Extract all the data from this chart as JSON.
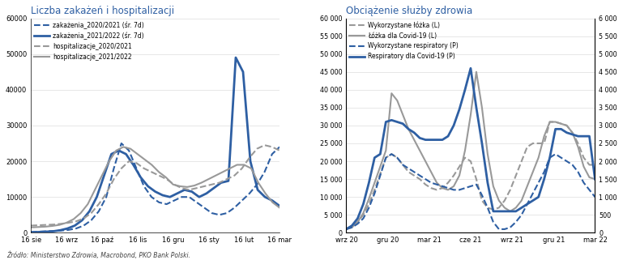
{
  "chart1": {
    "title": "Liczba zakażeń i hospitalizacji",
    "xticks": [
      "16 sie",
      "16 wrz",
      "16 paź",
      "16 lis",
      "16 gru",
      "16 sty",
      "16 lut",
      "16 mar"
    ],
    "ylim": [
      0,
      60000
    ],
    "yticks": [
      0,
      10000,
      20000,
      30000,
      40000,
      50000,
      60000
    ],
    "ytick_labels": [
      "0",
      "10000",
      "20000",
      "30000",
      "40000",
      "50000",
      "60000"
    ],
    "legend": [
      {
        "label": "zakażenia_2020/2021 (śr. 7d)",
        "color": "#2E5FA3",
        "ls": "dashed",
        "lw": 1.5
      },
      {
        "label": "zakażenia_2021/2022 (śr. 7d)",
        "color": "#2E5FA3",
        "ls": "solid",
        "lw": 2.0
      },
      {
        "label": "hospitalizacje_2020/2021",
        "color": "#999999",
        "ls": "dashed",
        "lw": 1.5
      },
      {
        "label": "hospitalizacje_2021/2022",
        "color": "#999999",
        "ls": "solid",
        "lw": 1.5
      }
    ],
    "series": {
      "zakaz_2020_2021": [
        200,
        300,
        400,
        500,
        600,
        800,
        1200,
        2000,
        3500,
        6000,
        10000,
        18000,
        25000,
        23000,
        18000,
        13000,
        10000,
        8500,
        8000,
        9000,
        10000,
        10000,
        8500,
        7000,
        5500,
        5000,
        5500,
        7000,
        9000,
        11000,
        13500,
        17000,
        22000,
        24000
      ],
      "zakaz_2021_2022": [
        100,
        200,
        300,
        400,
        700,
        1200,
        2000,
        3500,
        6000,
        10000,
        16000,
        22000,
        23000,
        22000,
        19000,
        15500,
        13000,
        11500,
        10500,
        10000,
        11000,
        12000,
        11500,
        10000,
        11000,
        12500,
        14000,
        14500,
        49000,
        45000,
        20000,
        12000,
        10000,
        9000,
        7500
      ],
      "hosp_2020_2021": [
        2000,
        2100,
        2200,
        2300,
        2500,
        2800,
        3200,
        4000,
        5500,
        8000,
        11000,
        15000,
        18000,
        20000,
        19500,
        18000,
        17000,
        16000,
        15000,
        13500,
        12500,
        12000,
        12500,
        13000,
        13500,
        14000,
        15000,
        16000,
        18000,
        21000,
        23500,
        24500,
        24000,
        23000
      ],
      "hosp_2021_2022": [
        1500,
        1600,
        1700,
        1900,
        2200,
        2800,
        3800,
        5500,
        8000,
        12000,
        16000,
        20000,
        23000,
        24000,
        23500,
        22000,
        20500,
        19000,
        17000,
        15500,
        13500,
        13000,
        12800,
        13200,
        14000,
        15000,
        16000,
        17000,
        18000,
        19000,
        19000,
        18000,
        14000,
        11000,
        8500,
        7000
      ]
    }
  },
  "chart2": {
    "title": "Obciążenie służby zdrowia",
    "xticks": [
      "wrz 20",
      "gru 20",
      "mar 21",
      "cze 21",
      "wrz 21",
      "gru 21",
      "mar 22"
    ],
    "ylim_left": [
      0,
      60000
    ],
    "ylim_right": [
      0,
      6000
    ],
    "yticks_left": [
      0,
      5000,
      10000,
      15000,
      20000,
      25000,
      30000,
      35000,
      40000,
      45000,
      50000,
      55000,
      60000
    ],
    "ytick_labels_left": [
      "0",
      "5 000",
      "10 000",
      "15 000",
      "20 000",
      "25 000",
      "30 000",
      "35 000",
      "40 000",
      "45 000",
      "50 000",
      "55 000",
      "60 000"
    ],
    "yticks_right": [
      0,
      500,
      1000,
      1500,
      2000,
      2500,
      3000,
      3500,
      4000,
      4500,
      5000,
      5500,
      6000
    ],
    "ytick_labels_right": [
      "0",
      "500",
      "1 000",
      "1 500",
      "2 000",
      "2 500",
      "3 000",
      "3 500",
      "4 000",
      "4 500",
      "5 000",
      "5 500",
      "6 000"
    ],
    "legend": [
      {
        "label": "Wykorzystane łóżka (L)",
        "color": "#999999",
        "ls": "dashed",
        "lw": 1.5
      },
      {
        "label": "Łóżka dla Covid-19 (L)",
        "color": "#999999",
        "ls": "solid",
        "lw": 1.5
      },
      {
        "label": "Wykorzystane respiratory (P)",
        "color": "#2E5FA3",
        "ls": "dashed",
        "lw": 1.5
      },
      {
        "label": "Respiratory dla Covid-19 (P)",
        "color": "#2E5FA3",
        "ls": "solid",
        "lw": 2.0
      }
    ],
    "series": {
      "wyk_lozka": [
        1200,
        1800,
        3000,
        5000,
        8000,
        12000,
        16500,
        21000,
        22000,
        21000,
        19000,
        17000,
        16000,
        15000,
        13500,
        12500,
        12000,
        12500,
        14000,
        16000,
        18500,
        21000,
        20000,
        15000,
        9000,
        7000,
        6500,
        7000,
        9000,
        12000,
        16000,
        20000,
        24000,
        25000,
        25000,
        25000,
        31000,
        31000,
        30500,
        30000,
        28000,
        25000,
        21000,
        19000,
        19000
      ],
      "lozka_covid": [
        1000,
        1500,
        3000,
        5500,
        9500,
        14000,
        18500,
        23000,
        39000,
        37000,
        33000,
        29000,
        26000,
        23000,
        20000,
        17000,
        14000,
        12500,
        12000,
        13000,
        16000,
        23000,
        33000,
        45000,
        35000,
        22000,
        13000,
        9000,
        7000,
        6000,
        7000,
        9000,
        13000,
        17000,
        21000,
        27000,
        31000,
        31000,
        30500,
        30000,
        28000,
        24000,
        18500,
        15500,
        15000
      ],
      "wyk_resp": [
        100,
        150,
        250,
        400,
        700,
        1100,
        1600,
        2100,
        2200,
        2100,
        1900,
        1800,
        1700,
        1600,
        1500,
        1400,
        1350,
        1300,
        1250,
        1200,
        1200,
        1250,
        1300,
        1350,
        1050,
        700,
        300,
        100,
        100,
        150,
        300,
        500,
        800,
        1100,
        1400,
        1700,
        2100,
        2200,
        2100,
        2000,
        1900,
        1700,
        1400,
        1200,
        1000
      ],
      "resp_covid": [
        100,
        200,
        400,
        800,
        1400,
        2100,
        2200,
        3100,
        3150,
        3100,
        3050,
        2900,
        2800,
        2650,
        2600,
        2600,
        2600,
        2600,
        2700,
        3000,
        3450,
        4000,
        4600,
        3500,
        2500,
        1400,
        600,
        600,
        600,
        600,
        600,
        700,
        800,
        900,
        1000,
        1500,
        2100,
        2900,
        2900,
        2800,
        2750,
        2700,
        2700,
        2700,
        1500
      ]
    }
  },
  "footer": "Źródło: Ministerstwo Zdrowia, Macrobond, PKO Bank Polski.",
  "title_color": "#2E5FA3",
  "bg_color": "#FFFFFF",
  "grid_color": "#DDDDDD"
}
